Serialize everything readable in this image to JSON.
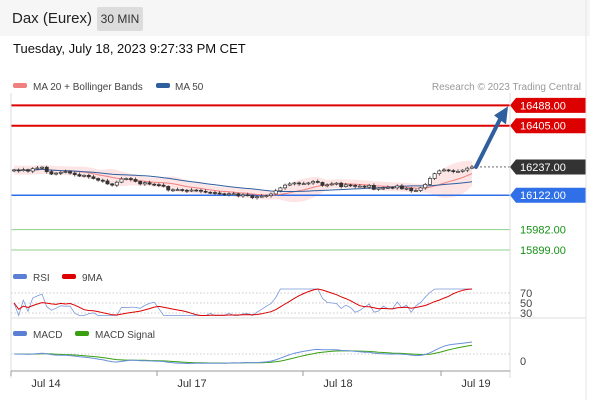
{
  "header": {
    "title": "Dax (Eurex)",
    "timeframe": "30 MIN",
    "timestamp": "Tuesday, July 18, 2023 9:27:33 PM CET"
  },
  "legend": {
    "ma20": "MA 20 + Bollinger Bands",
    "ma50": "MA 50",
    "copyright": "Research © 2023 Trading Central"
  },
  "colors": {
    "resistance": "#dd0000",
    "support": "#2f6fe8",
    "target": "#169016",
    "ma20": "#f08080",
    "ma50": "#2f5f9f",
    "current": "#333333",
    "arrow": "#2f5f9f"
  },
  "chart_data": [
    {
      "type": "candlestick",
      "title": "Dax (Eurex)",
      "timeframe": "30 MIN",
      "x_labels": [
        "Jul 14",
        "Jul 17",
        "Jul 18",
        "Jul 19"
      ],
      "ylim": [
        15850,
        16530
      ],
      "closes": [
        16225,
        16222,
        16226,
        16220,
        16230,
        16233,
        16236,
        16218,
        16208,
        16212,
        16215,
        16218,
        16212,
        16206,
        16200,
        16203,
        16197,
        16190,
        16183,
        16180,
        16168,
        16163,
        16175,
        16188,
        16190,
        16186,
        16178,
        16168,
        16173,
        16167,
        16165,
        16163,
        16158,
        16143,
        16144,
        16145,
        16142,
        16139,
        16143,
        16142,
        16138,
        16134,
        16133,
        16131,
        16128,
        16125,
        16128,
        16128,
        16119,
        16124,
        16121,
        16112,
        16116,
        16118,
        16120,
        16127,
        16140,
        16152,
        16163,
        16168,
        16172,
        16168,
        16169,
        16172,
        16178,
        16174,
        16162,
        16164,
        16168,
        16171,
        16157,
        16164,
        16162,
        16158,
        16159,
        16155,
        16162,
        16146,
        16151,
        16151,
        16154,
        16152,
        16160,
        16148,
        16150,
        16140,
        16141,
        16152,
        16166,
        16190,
        16210,
        16221,
        16225,
        16222,
        16219,
        16219,
        16224,
        16232,
        16237
      ],
      "levels": {
        "resistance": [
          16488.0,
          16405.0
        ],
        "current": 16237.0,
        "support": [
          16122.0
        ],
        "targets": [
          15982.0,
          15899.0
        ]
      },
      "level_labels": [
        "16488.00",
        "16405.00",
        "16237.00",
        "16122.00",
        "15982.00",
        "15899.00"
      ],
      "series": [
        {
          "name": "MA 20 + Bollinger Bands"
        },
        {
          "name": "MA 50"
        }
      ]
    },
    {
      "type": "line",
      "series": [
        {
          "name": "RSI"
        },
        {
          "name": "9MA"
        }
      ],
      "reference_lines": [
        70,
        50,
        30
      ],
      "ylim": [
        20,
        80
      ]
    },
    {
      "type": "line",
      "series": [
        {
          "name": "MACD"
        },
        {
          "name": "MACD Signal"
        }
      ],
      "reference_lines": [
        0
      ]
    }
  ]
}
